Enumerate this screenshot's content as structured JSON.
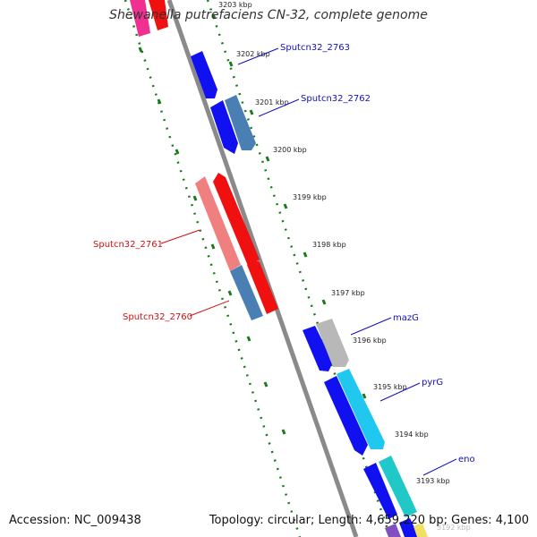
{
  "title": "Shewanella putrefaciens CN-32, complete genome",
  "accession_label": "Accession:",
  "accession": "NC_009438",
  "topology_label": "Topology:",
  "topology": "circular",
  "length_label": "Length:",
  "length": "4,659,220 bp",
  "genes_label": "Genes:",
  "genes": "4,100",
  "ticks": [
    {
      "label": "3203 kbp"
    },
    {
      "label": "3202 kbp"
    },
    {
      "label": "3201 kbp"
    },
    {
      "label": "3200 kbp"
    },
    {
      "label": "3199 kbp"
    },
    {
      "label": "3198 kbp"
    },
    {
      "label": "3197 kbp"
    },
    {
      "label": "3196 kbp"
    },
    {
      "label": "3195 kbp"
    },
    {
      "label": "3194 kbp"
    },
    {
      "label": "3193 kbp"
    },
    {
      "label": "3192 kbp"
    }
  ],
  "gene_labels": [
    {
      "name": "Sputcn32_2763",
      "strand": "forward"
    },
    {
      "name": "Sputcn32_2762",
      "strand": "forward"
    },
    {
      "name": "Sputcn32_2761",
      "strand": "reverse"
    },
    {
      "name": "Sputcn32_2760",
      "strand": "reverse"
    },
    {
      "name": "mazG",
      "strand": "forward"
    },
    {
      "name": "pyrG",
      "strand": "forward"
    },
    {
      "name": "eno",
      "strand": "forward"
    }
  ],
  "colors": {
    "backbone": "#808080",
    "forward_cds": "#1010f0",
    "forward_cds_alt": "#4a7fb4",
    "reverse_cds": "#f01010",
    "reverse_cds_light": "#f08080",
    "forward_label": "#1010c0",
    "reverse_label": "#d01010",
    "tick_line": "#1a7a1a",
    "gray_gene": "#b8b8b8",
    "cyan_gene": "#20c8f0",
    "teal_gene": "#20c8c8",
    "pink_gene": "#f03090",
    "yellow_gene": "#f0e060"
  }
}
